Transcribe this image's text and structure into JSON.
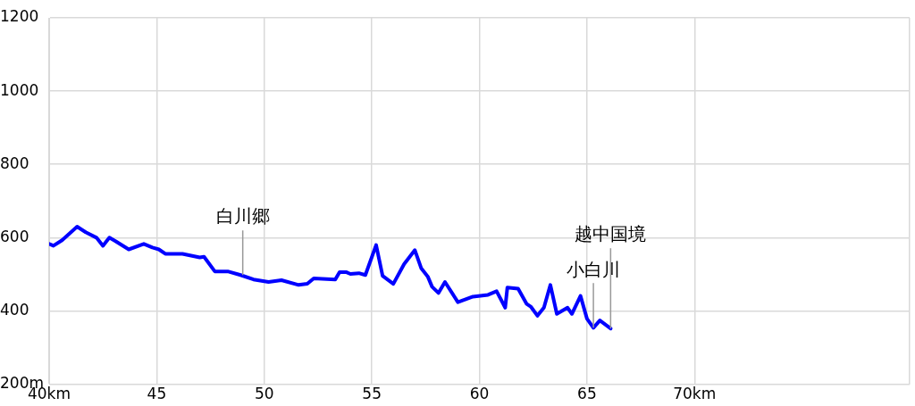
{
  "chart_data": {
    "type": "line",
    "x": [
      40.0,
      40.2,
      40.6,
      41.3,
      41.7,
      42.2,
      42.5,
      42.8,
      43.1,
      43.7,
      44.4,
      44.8,
      45.1,
      45.4,
      46.2,
      47.0,
      47.2,
      47.7,
      48.3,
      48.9,
      49.5,
      50.2,
      50.8,
      51.6,
      52.0,
      52.3,
      53.3,
      53.5,
      53.8,
      54.0,
      54.4,
      54.7,
      55.2,
      55.5,
      56.0,
      56.5,
      57.0,
      57.3,
      57.6,
      57.8,
      58.1,
      58.4,
      59.0,
      59.7,
      60.4,
      60.8,
      61.2,
      61.3,
      61.8,
      62.2,
      62.4,
      62.7,
      63.0,
      63.3,
      63.6,
      64.1,
      64.3,
      64.7,
      65.0,
      65.3,
      65.6,
      66.1
    ],
    "series": [
      {
        "color": "#0000ff",
        "values": [
          583,
          578,
          593,
          630,
          615,
          600,
          578,
          600,
          590,
          568,
          583,
          573,
          568,
          556,
          556,
          546,
          548,
          508,
          508,
          498,
          486,
          479,
          484,
          471,
          474,
          489,
          486,
          506,
          506,
          501,
          503,
          498,
          580,
          496,
          474,
          528,
          566,
          516,
          494,
          466,
          449,
          479,
          424,
          439,
          444,
          454,
          409,
          464,
          461,
          419,
          411,
          387,
          409,
          471,
          392,
          409,
          392,
          441,
          379,
          354,
          374,
          352
        ]
      }
    ],
    "xlim": [
      40,
      80
    ],
    "xticks": [
      {
        "value": 40,
        "label": "40km"
      },
      45,
      50,
      55,
      60,
      65,
      {
        "value": 70,
        "label": "70km"
      },
      {
        "value": 80,
        "label": null
      }
    ],
    "ylim": [
      200,
      1200
    ],
    "yticks": [
      {
        "value": 200,
        "label": "200m"
      },
      400,
      600,
      800,
      1000,
      1200
    ],
    "grid": true,
    "legend": false,
    "marker": "none",
    "line_style": "solid",
    "annotations": [
      {
        "text": "白川郷",
        "x": 49.0,
        "y": 498
      },
      {
        "text": "小白川",
        "x": 65.3,
        "y": 354
      },
      {
        "text": "越中国境",
        "x": 66.1,
        "y": 352
      }
    ]
  }
}
